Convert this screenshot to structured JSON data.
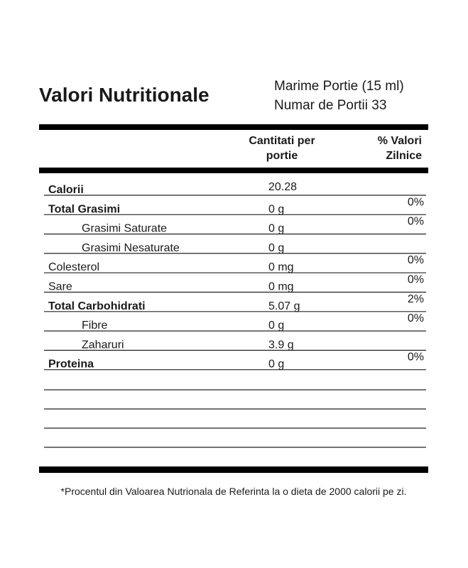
{
  "header": {
    "title": "Valori Nutritionale",
    "serving_size": "Marime Portie (15 ml)",
    "servings": "Numar de Portii 33"
  },
  "table": {
    "columns": [
      "Cantitati per",
      "portie",
      "% Valori",
      "Zilnice"
    ],
    "rows": [
      [
        "Calorii",
        "20.28"
      ],
      [
        "Total Grasimi",
        "0 g",
        "0%"
      ],
      [
        "Grasimi Saturate",
        "0 g",
        "0%"
      ],
      [
        "Grasimi Nesaturate",
        "0 g"
      ],
      [
        "Colesterol",
        "0 mg",
        "0%"
      ],
      [
        "Sare",
        "0 mg",
        "0%"
      ],
      [
        "Total Carbohidrati",
        "5.07 g",
        "2%"
      ],
      [
        "Fibre",
        "0 g",
        "0%"
      ],
      [
        "Zaharuri",
        "3.9 g"
      ],
      [
        "Proteina",
        "0 g",
        "0%"
      ]
    ]
  },
  "footnote": "*Procentul din Valoarea Nutrionala de Referinta la o dieta de 2000 calorii pe zi."
}
